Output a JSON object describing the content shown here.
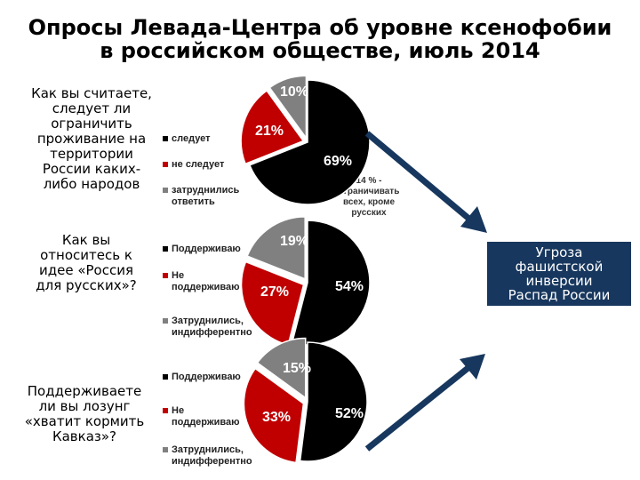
{
  "title": {
    "line1": "Опросы Левада-Центра об уровне ксенофобии",
    "line2": "в российском обществе, июль 2014"
  },
  "questions": [
    {
      "lines": [
        "Как вы считаете,",
        "следует ли",
        "ограничить",
        "проживание на",
        "территории",
        "России каких-",
        "либо народов"
      ]
    },
    {
      "lines": [
        "Как вы",
        "относитесь к",
        "идее «Россия",
        "для русских»?"
      ]
    },
    {
      "lines": [
        "Поддерживаете",
        "ли вы лозунг",
        "«хватит кормить",
        "Кавказ»?"
      ]
    }
  ],
  "chart_data": [
    {
      "type": "pie",
      "categories": [
        "следует",
        "не следует",
        "затруднились ответить"
      ],
      "values": [
        69,
        21,
        10
      ],
      "value_labels": [
        "69%",
        "21%",
        "10%"
      ],
      "colors": [
        "#000000",
        "#c00000",
        "#808080"
      ]
    },
    {
      "type": "pie",
      "categories": [
        "Поддерживаю",
        "Не поддерживаю",
        "Затруднились, индифферентно"
      ],
      "values": [
        54,
        27,
        19
      ],
      "value_labels": [
        "54%",
        "27%",
        "19%"
      ],
      "colors": [
        "#000000",
        "#c00000",
        "#808080"
      ]
    },
    {
      "type": "pie",
      "categories": [
        "Поддерживаю",
        "Не поддерживаю",
        "Затруднились, индифферентно"
      ],
      "values": [
        52,
        33,
        15
      ],
      "value_labels": [
        "52%",
        "33%",
        "15%"
      ],
      "colors": [
        "#000000",
        "#c00000",
        "#808080"
      ]
    }
  ],
  "legends": [
    [
      [
        "следует"
      ],
      [
        "не следует"
      ],
      [
        "затруднились",
        "ответить"
      ]
    ],
    [
      [
        "Поддерживаю"
      ],
      [
        "Не",
        "поддерживаю"
      ],
      [
        "Затруднились,",
        "индифферентно"
      ]
    ],
    [
      [
        "Поддерживаю"
      ],
      [
        "Не",
        "поддерживаю"
      ],
      [
        "Затруднились,",
        "индифферентно"
      ]
    ]
  ],
  "note": {
    "lines": [
      "14 % -",
      "ограничивать",
      "всех, кроме",
      "русских"
    ]
  },
  "threat_box": {
    "lines": [
      "Угроза",
      "фашистской",
      "инверсии",
      "Распад России"
    ],
    "color": "#17375e"
  },
  "arrow_color": "#17375e"
}
